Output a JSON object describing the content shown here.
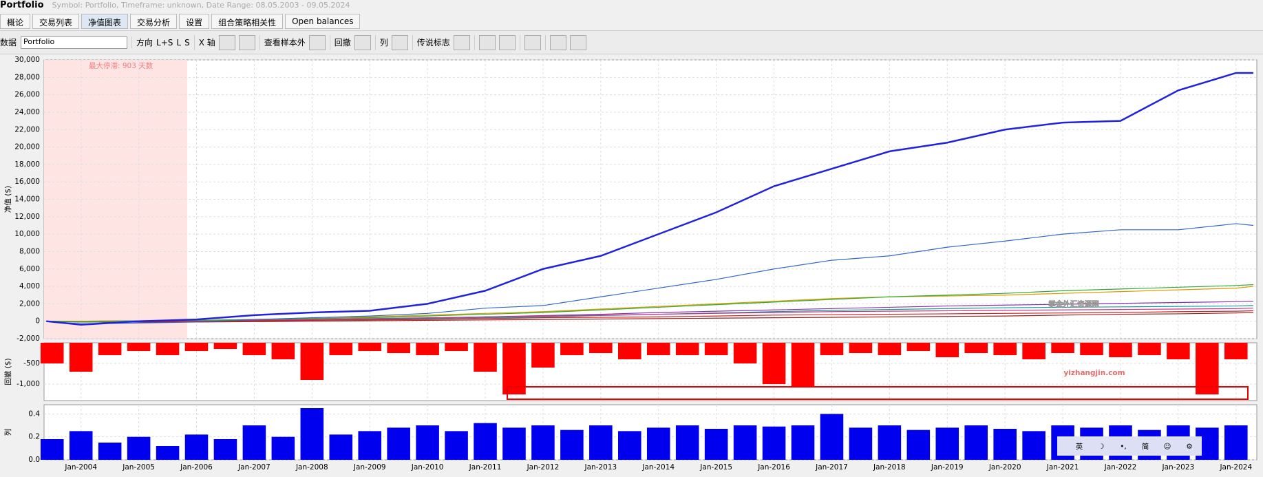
{
  "window": {
    "title": "Portfolio",
    "subtitle": "Symbol: Portfolio, Timeframe: unknown, Date Range: 08.05.2003 - 09.05.2024"
  },
  "tabs": [
    "概论",
    "交易列表",
    "净值图表",
    "交易分析",
    "设置",
    "组合策略相关性",
    "Open balances"
  ],
  "toolbar": {
    "data_label": "数据",
    "data_value": "Portfolio",
    "direction_label": "方向",
    "directions": [
      "L+S",
      "L",
      "S"
    ],
    "x_axis_label": "X 轴",
    "out_of_sample_label": "查看样本外",
    "drawdown_label": "回撤",
    "column_label": "列",
    "legend_label": "传说标志"
  },
  "watermark": {
    "line1": "掌金外汇资源网",
    "line2": "yizhangjin.com"
  },
  "ime_bar": [
    "英",
    "☽",
    "•,",
    "简",
    "☺",
    "⚙"
  ],
  "chart_data": [
    {
      "type": "line",
      "ylabel": "净值 ($)",
      "annotation": "最大停滞: 903 天数",
      "shade": [
        2003.36,
        2005.84
      ],
      "xlim": [
        2003.36,
        2024.36
      ],
      "ylim": [
        -2000,
        30000
      ],
      "yticks": [
        {
          "value": -2000,
          "label": "-2,000"
        },
        0,
        {
          "value": 2000,
          "label": "2,000"
        },
        {
          "value": 4000,
          "label": "4,000"
        },
        {
          "value": 6000,
          "label": "6,000"
        },
        {
          "value": 8000,
          "label": "8,000"
        },
        {
          "value": 10000,
          "label": "10,000"
        },
        {
          "value": 12000,
          "label": "12,000"
        },
        {
          "value": 14000,
          "label": "14,000"
        },
        {
          "value": 16000,
          "label": "16,000"
        },
        {
          "value": 18000,
          "label": "18,000"
        },
        {
          "value": 20000,
          "label": "20,000"
        },
        {
          "value": 22000,
          "label": "22,000"
        },
        {
          "value": 24000,
          "label": "24,000"
        },
        {
          "value": 26000,
          "label": "26,000"
        },
        {
          "value": 28000,
          "label": "28,000"
        },
        {
          "value": 30000,
          "label": "30,000"
        }
      ],
      "grid": true,
      "x": [
        2003.4,
        2004,
        2005,
        2006,
        2007,
        2008,
        2009,
        2010,
        2011,
        2012,
        2013,
        2014,
        2015,
        2016,
        2017,
        2018,
        2019,
        2020,
        2021,
        2022,
        2023,
        2024,
        2024.3
      ],
      "series": [
        {
          "color": "#8833aa",
          "values": [
            0,
            -100,
            -50,
            0,
            100,
            150,
            250,
            350,
            500,
            650,
            800,
            1000,
            1150,
            1300,
            1450,
            1600,
            1750,
            1850,
            1950,
            2050,
            2150,
            2250,
            2300
          ]
        },
        {
          "color": "#119999",
          "values": [
            0,
            -100,
            -100,
            -50,
            0,
            100,
            200,
            300,
            400,
            500,
            650,
            800,
            950,
            1100,
            1250,
            1350,
            1450,
            1550,
            1600,
            1650,
            1700,
            1750,
            1800
          ]
        },
        {
          "color": "#cc3388",
          "values": [
            0,
            0,
            50,
            100,
            150,
            200,
            300,
            400,
            500,
            600,
            700,
            800,
            900,
            1000,
            1100,
            1150,
            1200,
            1250,
            1300,
            1350,
            1400,
            1450,
            1500
          ]
        },
        {
          "color": "#cc2222",
          "values": [
            0,
            -50,
            -50,
            0,
            50,
            100,
            150,
            200,
            300,
            400,
            450,
            500,
            600,
            700,
            750,
            800,
            850,
            900,
            950,
            1000,
            1100,
            1150,
            1200
          ]
        },
        {
          "color": "#992222",
          "values": [
            0,
            -50,
            -100,
            -100,
            -50,
            0,
            50,
            100,
            150,
            200,
            250,
            300,
            350,
            400,
            450,
            500,
            550,
            600,
            700,
            800,
            850,
            950,
            1000
          ]
        },
        {
          "color": "#dd9900",
          "values": [
            0,
            -50,
            0,
            100,
            200,
            300,
            500,
            700,
            900,
            1100,
            1400,
            1700,
            2000,
            2300,
            2600,
            2800,
            2900,
            3000,
            3200,
            3400,
            3600,
            3800,
            4000
          ]
        },
        {
          "color": "#33aa33",
          "values": [
            0,
            0,
            50,
            100,
            200,
            300,
            400,
            600,
            800,
            1000,
            1300,
            1600,
            1900,
            2200,
            2500,
            2800,
            3000,
            3200,
            3500,
            3700,
            3900,
            4100,
            4200
          ]
        },
        {
          "color": "#3366cc",
          "values": [
            0,
            -300,
            -200,
            -100,
            200,
            400,
            600,
            900,
            1500,
            1800,
            2800,
            3800,
            4800,
            6000,
            7000,
            7500,
            8500,
            9200,
            10000,
            10500,
            10500,
            11200,
            11000
          ]
        },
        {
          "color": "#2222dd",
          "width": 2.5,
          "values": [
            0,
            -400,
            0,
            200,
            700,
            1000,
            1200,
            2000,
            3500,
            6000,
            7500,
            10000,
            12500,
            15500,
            17500,
            19500,
            20500,
            22000,
            22800,
            23000,
            26500,
            28500,
            28500
          ]
        }
      ]
    },
    {
      "type": "bar",
      "ylabel": "回撤 ($)",
      "color": "#ff0000",
      "xlim": [
        2003.36,
        2024.36
      ],
      "ylim": [
        -1400,
        0
      ],
      "yticks": [
        -500,
        {
          "value": -1000,
          "label": "-1,000"
        }
      ],
      "grid": true,
      "x": [
        2003.5,
        2004,
        2004.5,
        2005,
        2005.5,
        2006,
        2006.5,
        2007,
        2007.5,
        2008,
        2008.5,
        2009,
        2009.5,
        2010,
        2010.5,
        2011,
        2011.5,
        2012,
        2012.5,
        2013,
        2013.5,
        2014,
        2014.5,
        2015,
        2015.5,
        2016,
        2016.5,
        2017,
        2017.5,
        2018,
        2018.5,
        2019,
        2019.5,
        2020,
        2020.5,
        2021,
        2021.5,
        2022,
        2022.5,
        2023,
        2023.5,
        2024
      ],
      "values": [
        -500,
        -700,
        -300,
        -200,
        -300,
        -200,
        -150,
        -300,
        -400,
        -900,
        -300,
        -200,
        -250,
        -300,
        -200,
        -700,
        -1250,
        -600,
        -300,
        -250,
        -400,
        -300,
        -300,
        -300,
        -500,
        -1000,
        -1050,
        -300,
        -250,
        -300,
        -200,
        -350,
        -250,
        -300,
        -400,
        -250,
        -300,
        -350,
        -300,
        -400,
        -1250,
        -400
      ]
    },
    {
      "type": "bar",
      "ylabel": "列",
      "color": "#0000ee",
      "xlim": [
        2003.36,
        2024.36
      ],
      "ylim": [
        0,
        0.48
      ],
      "yticks": [
        {
          "value": 0,
          "label": "0.0"
        },
        0.2,
        0.4
      ],
      "grid": true,
      "xticks": [
        {
          "value": 2004,
          "label": "Jan-2004"
        },
        {
          "value": 2005,
          "label": "Jan-2005"
        },
        {
          "value": 2006,
          "label": "Jan-2006"
        },
        {
          "value": 2007,
          "label": "Jan-2007"
        },
        {
          "value": 2008,
          "label": "Jan-2008"
        },
        {
          "value": 2009,
          "label": "Jan-2009"
        },
        {
          "value": 2010,
          "label": "Jan-2010"
        },
        {
          "value": 2011,
          "label": "Jan-2011"
        },
        {
          "value": 2012,
          "label": "Jan-2012"
        },
        {
          "value": 2013,
          "label": "Jan-2013"
        },
        {
          "value": 2014,
          "label": "Jan-2014"
        },
        {
          "value": 2015,
          "label": "Jan-2015"
        },
        {
          "value": 2016,
          "label": "Jan-2016"
        },
        {
          "value": 2017,
          "label": "Jan-2017"
        },
        {
          "value": 2018,
          "label": "Jan-2018"
        },
        {
          "value": 2019,
          "label": "Jan-2019"
        },
        {
          "value": 2020,
          "label": "Jan-2020"
        },
        {
          "value": 2021,
          "label": "Jan-2021"
        },
        {
          "value": 2022,
          "label": "Jan-2022"
        },
        {
          "value": 2023,
          "label": "Jan-2023"
        },
        {
          "value": 2024,
          "label": "Jan-2024"
        }
      ],
      "x": [
        2003.5,
        2004,
        2004.5,
        2005,
        2005.5,
        2006,
        2006.5,
        2007,
        2007.5,
        2008,
        2008.5,
        2009,
        2009.5,
        2010,
        2010.5,
        2011,
        2011.5,
        2012,
        2012.5,
        2013,
        2013.5,
        2014,
        2014.5,
        2015,
        2015.5,
        2016,
        2016.5,
        2017,
        2017.5,
        2018,
        2018.5,
        2019,
        2019.5,
        2020,
        2020.5,
        2021,
        2021.5,
        2022,
        2022.5,
        2023,
        2023.5,
        2024
      ],
      "values": [
        0.18,
        0.25,
        0.15,
        0.2,
        0.12,
        0.22,
        0.18,
        0.3,
        0.2,
        0.45,
        0.22,
        0.25,
        0.28,
        0.3,
        0.25,
        0.32,
        0.28,
        0.3,
        0.26,
        0.3,
        0.25,
        0.28,
        0.3,
        0.27,
        0.3,
        0.29,
        0.3,
        0.4,
        0.28,
        0.3,
        0.26,
        0.28,
        0.3,
        0.27,
        0.25,
        0.3,
        0.28,
        0.3,
        0.26,
        0.3,
        0.28,
        0.3
      ]
    }
  ]
}
